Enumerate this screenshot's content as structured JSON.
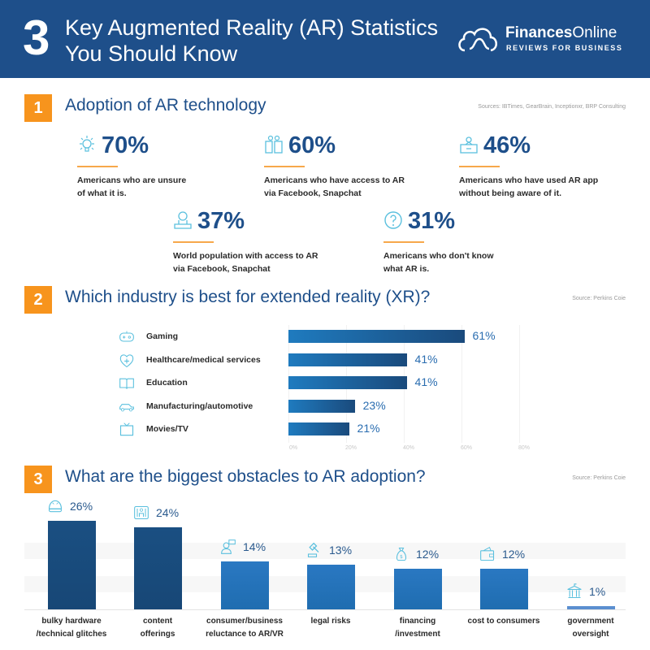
{
  "header": {
    "number": "3",
    "title_line1": "Key Augmented Reality (AR) Statistics",
    "title_line2": "You Should Know",
    "brand_bold": "Finances",
    "brand_light": "Online",
    "tagline": "REVIEWS FOR BUSINESS",
    "bg_color": "#1e4f8a"
  },
  "section1": {
    "number": "1",
    "title": "Adoption of AR technology",
    "source": "Sources: IBTimes, GearBrain, Inceptionxr, BRP Consulting",
    "stats": [
      {
        "icon": "lightbulb-icon",
        "value": "70%",
        "line1": "Americans who are unsure",
        "line2": "of what it is."
      },
      {
        "icon": "social-apps-icon",
        "value": "60%",
        "line1": "Americans who have access to AR",
        "line2": "via Facebook, Snapchat"
      },
      {
        "icon": "ar-headset-icon",
        "value": "46%",
        "line1": "Americans who have used AR app",
        "line2": "without being aware of it."
      },
      {
        "icon": "globe-hand-icon",
        "value": "37%",
        "line1": "World population with  access to AR",
        "line2": "via Facebook, Snapchat"
      },
      {
        "icon": "question-icon",
        "value": "31%",
        "line1": "Americans who don't know",
        "line2": "what AR is."
      }
    ]
  },
  "section2": {
    "number": "2",
    "title": "Which industry is best for extended reality (XR)?",
    "source": "Source: Perkins Coie"
  },
  "section3": {
    "number": "3",
    "title": "What are the biggest obstacles to AR adoption?",
    "source": "Source: Perkins Coie"
  },
  "chart_data": [
    {
      "type": "bar",
      "orientation": "horizontal",
      "title": "Which industry is best for extended reality (XR)?",
      "categories": [
        "Gaming",
        "Healthcare/medical services",
        "Education",
        "Manufacturing/automotive",
        "Movies/TV"
      ],
      "icons": [
        "gamepad-icon",
        "heart-medical-icon",
        "book-icon",
        "car-icon",
        "tv-icon"
      ],
      "values": [
        61,
        41,
        41,
        23,
        21
      ],
      "value_labels": [
        "61%",
        "41%",
        "41%",
        "23%",
        "21%"
      ],
      "xlim": [
        0,
        80
      ],
      "xticks": [
        "0%",
        "20%",
        "40%",
        "60%",
        "80%"
      ],
      "grid": true
    },
    {
      "type": "bar",
      "orientation": "vertical",
      "title": "What are the biggest obstacles to AR adoption?",
      "categories": [
        [
          "bulky hardware",
          "/technical glitches"
        ],
        [
          "content",
          "offerings"
        ],
        [
          "consumer/business",
          "reluctance to AR/VR"
        ],
        [
          "legal risks"
        ],
        [
          "financing",
          "/investment"
        ],
        [
          "cost to consumers"
        ],
        [
          "government",
          "oversight"
        ]
      ],
      "icons": [
        "helmet-icon",
        "vr-room-icon",
        "person-screen-icon",
        "gavel-icon",
        "money-bag-icon",
        "wallet-icon",
        "government-building-icon"
      ],
      "values": [
        26,
        24,
        14,
        13,
        12,
        12,
        1
      ],
      "value_labels": [
        "26%",
        "24%",
        "14%",
        "13%",
        "12%",
        "12%",
        "1%"
      ],
      "ylim": [
        0,
        30
      ],
      "colors": [
        "#1a4f82",
        "#1a4f82",
        "#2a78c2",
        "#2a78c2",
        "#2a78c2",
        "#2a78c2",
        "#5b8fd0"
      ]
    }
  ]
}
